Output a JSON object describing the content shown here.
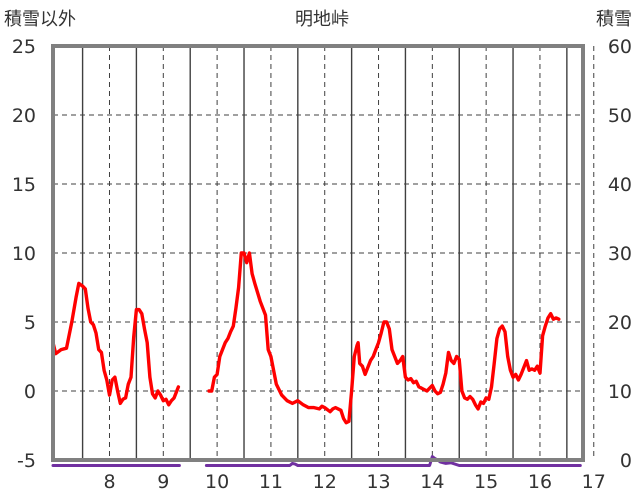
{
  "chart_data": {
    "type": "line",
    "title": "明地峠",
    "y_left_label": "積雪以外",
    "y_right_label": "積雪",
    "y_left_range": [
      -5,
      25
    ],
    "y_left_ticks": [
      "-5",
      "0",
      "5",
      "10",
      "15",
      "20",
      "25"
    ],
    "y_right_range": [
      0,
      60
    ],
    "y_right_ticks": [
      "0",
      "10",
      "20",
      "30",
      "40",
      "50",
      "60"
    ],
    "x_range_days": [
      7.45,
      17.3
    ],
    "x_ticks": [
      "8",
      "9",
      "10",
      "11",
      "12",
      "13",
      "14",
      "15",
      "16",
      "17"
    ],
    "grid": true,
    "colors": {
      "temperature": "#ff0000",
      "snow": "#7030a0",
      "frame": "#808080",
      "grid": "#404040"
    },
    "series": [
      {
        "axis": "left",
        "segments": [
          [
            [
              7.45,
              3.5
            ],
            [
              7.5,
              2.7
            ],
            [
              7.6,
              3.0
            ],
            [
              7.7,
              3.1
            ],
            [
              7.8,
              5.0
            ],
            [
              7.88,
              6.8
            ],
            [
              7.93,
              7.8
            ],
            [
              8.0,
              7.6
            ],
            [
              8.05,
              7.4
            ],
            [
              8.1,
              6.0
            ],
            [
              8.15,
              5.0
            ],
            [
              8.2,
              4.8
            ],
            [
              8.25,
              4.2
            ],
            [
              8.3,
              3.0
            ],
            [
              8.35,
              2.8
            ],
            [
              8.4,
              1.5
            ],
            [
              8.45,
              0.8
            ],
            [
              8.5,
              -0.3
            ],
            [
              8.55,
              0.8
            ],
            [
              8.6,
              1.0
            ],
            [
              8.65,
              0.0
            ],
            [
              8.7,
              -0.9
            ],
            [
              8.75,
              -0.6
            ],
            [
              8.8,
              -0.5
            ],
            [
              8.85,
              0.5
            ],
            [
              8.9,
              1.0
            ],
            [
              8.95,
              3.9
            ],
            [
              9.0,
              5.9
            ],
            [
              9.05,
              5.9
            ],
            [
              9.1,
              5.6
            ],
            [
              9.15,
              4.5
            ],
            [
              9.2,
              3.5
            ],
            [
              9.25,
              1.0
            ],
            [
              9.3,
              -0.2
            ],
            [
              9.35,
              -0.5
            ],
            [
              9.4,
              0.0
            ],
            [
              9.45,
              -0.3
            ],
            [
              9.5,
              -0.7
            ],
            [
              9.55,
              -0.6
            ],
            [
              9.6,
              -1.0
            ],
            [
              9.65,
              -0.7
            ],
            [
              9.7,
              -0.5
            ],
            [
              9.78,
              0.3
            ]
          ],
          [
            [
              10.35,
              0.0
            ],
            [
              10.4,
              0.0
            ],
            [
              10.45,
              1.0
            ],
            [
              10.5,
              1.2
            ],
            [
              10.55,
              2.5
            ],
            [
              10.6,
              3.0
            ],
            [
              10.65,
              3.5
            ],
            [
              10.7,
              3.8
            ],
            [
              10.75,
              4.3
            ],
            [
              10.8,
              4.7
            ],
            [
              10.85,
              6.0
            ],
            [
              10.9,
              7.5
            ],
            [
              10.95,
              10.0
            ],
            [
              11.0,
              10.0
            ],
            [
              11.05,
              9.3
            ],
            [
              11.1,
              10.0
            ],
            [
              11.15,
              8.5
            ],
            [
              11.2,
              7.8
            ],
            [
              11.3,
              6.5
            ],
            [
              11.4,
              5.5
            ],
            [
              11.45,
              3.0
            ],
            [
              11.5,
              2.5
            ],
            [
              11.55,
              1.5
            ],
            [
              11.6,
              0.5
            ],
            [
              11.7,
              -0.3
            ],
            [
              11.8,
              -0.7
            ],
            [
              11.9,
              -0.9
            ],
            [
              12.0,
              -0.7
            ],
            [
              12.1,
              -1.0
            ],
            [
              12.2,
              -1.2
            ],
            [
              12.3,
              -1.2
            ],
            [
              12.4,
              -1.3
            ],
            [
              12.45,
              -1.1
            ],
            [
              12.5,
              -1.2
            ],
            [
              12.6,
              -1.5
            ],
            [
              12.65,
              -1.3
            ],
            [
              12.7,
              -1.2
            ],
            [
              12.8,
              -1.4
            ],
            [
              12.85,
              -2.0
            ],
            [
              12.9,
              -2.3
            ],
            [
              12.95,
              -2.2
            ],
            [
              13.0,
              0.0
            ],
            [
              13.05,
              2.5
            ],
            [
              13.1,
              3.3
            ],
            [
              13.12,
              3.5
            ],
            [
              13.15,
              2.0
            ],
            [
              13.2,
              1.8
            ],
            [
              13.25,
              1.2
            ],
            [
              13.3,
              1.7
            ],
            [
              13.35,
              2.2
            ],
            [
              13.4,
              2.5
            ],
            [
              13.45,
              3.0
            ],
            [
              13.5,
              3.5
            ],
            [
              13.55,
              4.2
            ],
            [
              13.6,
              5.0
            ],
            [
              13.65,
              5.0
            ],
            [
              13.7,
              4.5
            ],
            [
              13.75,
              3.0
            ],
            [
              13.8,
              2.5
            ],
            [
              13.85,
              2.0
            ],
            [
              13.9,
              2.2
            ],
            [
              13.95,
              2.5
            ],
            [
              14.0,
              1.0
            ],
            [
              14.05,
              0.8
            ],
            [
              14.1,
              0.9
            ],
            [
              14.15,
              0.6
            ],
            [
              14.2,
              0.7
            ],
            [
              14.25,
              0.3
            ],
            [
              14.3,
              0.2
            ],
            [
              14.35,
              0.1
            ],
            [
              14.4,
              0.0
            ],
            [
              14.45,
              0.2
            ],
            [
              14.5,
              0.4
            ],
            [
              14.55,
              0.0
            ],
            [
              14.6,
              -0.2
            ],
            [
              14.65,
              -0.1
            ],
            [
              14.7,
              0.5
            ],
            [
              14.75,
              1.3
            ],
            [
              14.8,
              2.8
            ],
            [
              14.85,
              2.2
            ],
            [
              14.9,
              2.0
            ],
            [
              14.95,
              2.5
            ],
            [
              15.0,
              2.3
            ],
            [
              15.05,
              0.0
            ],
            [
              15.1,
              -0.5
            ],
            [
              15.15,
              -0.6
            ],
            [
              15.2,
              -0.4
            ],
            [
              15.25,
              -0.6
            ],
            [
              15.3,
              -1.0
            ],
            [
              15.35,
              -1.3
            ],
            [
              15.4,
              -0.8
            ],
            [
              15.45,
              -0.9
            ],
            [
              15.5,
              -0.5
            ],
            [
              15.55,
              -0.6
            ],
            [
              15.6,
              0.3
            ],
            [
              15.65,
              2.0
            ],
            [
              15.7,
              3.8
            ],
            [
              15.75,
              4.5
            ],
            [
              15.8,
              4.7
            ],
            [
              15.85,
              4.3
            ],
            [
              15.9,
              2.5
            ],
            [
              15.95,
              1.5
            ],
            [
              16.0,
              1.0
            ],
            [
              16.05,
              1.2
            ],
            [
              16.1,
              0.8
            ],
            [
              16.15,
              1.2
            ],
            [
              16.2,
              1.7
            ],
            [
              16.25,
              2.2
            ],
            [
              16.3,
              1.5
            ],
            [
              16.35,
              1.6
            ],
            [
              16.4,
              1.5
            ],
            [
              16.45,
              1.8
            ],
            [
              16.5,
              1.3
            ],
            [
              16.55,
              4.0
            ],
            [
              16.6,
              4.7
            ],
            [
              16.65,
              5.3
            ],
            [
              16.7,
              5.6
            ],
            [
              16.75,
              5.2
            ],
            [
              16.8,
              5.3
            ],
            [
              16.85,
              5.2
            ]
          ]
        ]
      },
      {
        "axis": "right",
        "segments": [
          [
            [
              7.45,
              -0.8
            ],
            [
              9.8,
              -0.8
            ]
          ],
          [
            [
              10.3,
              -0.8
            ],
            [
              11.85,
              -0.8
            ],
            [
              11.9,
              -0.5
            ],
            [
              11.95,
              -0.6
            ],
            [
              12.0,
              -0.8
            ],
            [
              14.45,
              -0.8
            ],
            [
              14.5,
              0.5
            ],
            [
              14.55,
              0.2
            ],
            [
              14.6,
              0.0
            ],
            [
              14.65,
              -0.3
            ],
            [
              14.75,
              -0.5
            ],
            [
              14.85,
              -0.4
            ],
            [
              15.0,
              -0.8
            ],
            [
              17.25,
              -0.8
            ]
          ]
        ]
      }
    ]
  }
}
